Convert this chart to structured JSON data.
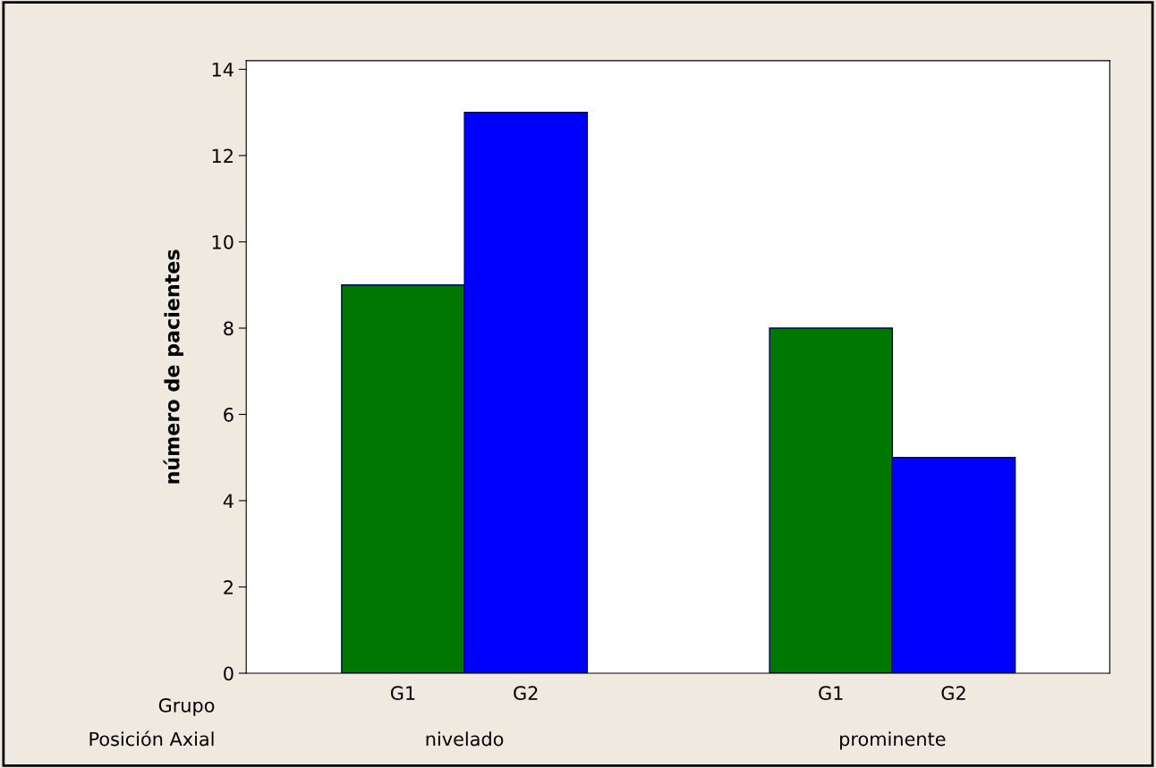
{
  "chart_data": {
    "type": "bar",
    "ylabel": "número de pacientes",
    "xlabel": "Posición Axial",
    "legend_title": "Grupo",
    "categories": [
      "nivelado",
      "prominente"
    ],
    "series": [
      {
        "name": "G1",
        "color": "#007700",
        "values": [
          9,
          8
        ]
      },
      {
        "name": "G2",
        "color": "#0000ff",
        "values": [
          13,
          5
        ]
      }
    ],
    "ylim": [
      0,
      14.2
    ],
    "yticks": [
      0,
      2,
      4,
      6,
      8,
      10,
      12,
      14
    ],
    "grid": false,
    "legend": false
  }
}
